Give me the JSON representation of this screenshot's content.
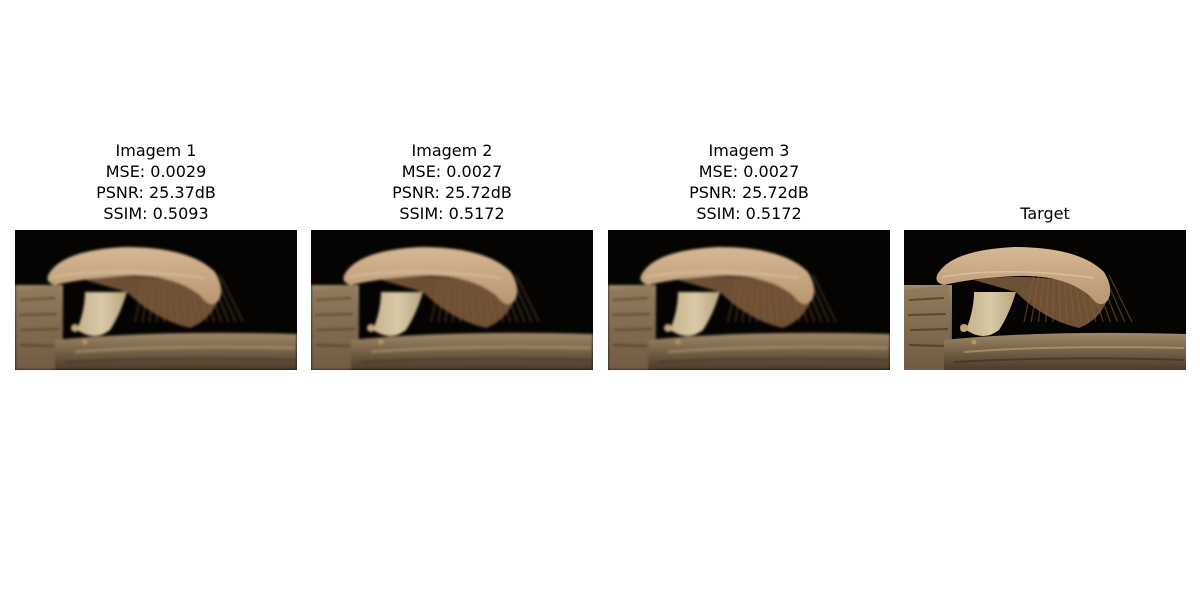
{
  "panels": [
    {
      "name": "Imagem 1",
      "metrics": [
        "MSE: 0.0029",
        "PSNR: 25.37dB",
        "SSIM: 0.5093"
      ],
      "image": "mushroom-photo"
    },
    {
      "name": "Imagem 2",
      "metrics": [
        "MSE: 0.0027",
        "PSNR: 25.72dB",
        "SSIM: 0.5172"
      ],
      "image": "mushroom-photo"
    },
    {
      "name": "Imagem 3",
      "metrics": [
        "MSE: 0.0027",
        "PSNR: 25.72dB",
        "SSIM: 0.5172"
      ],
      "image": "mushroom-photo"
    },
    {
      "name": "Target",
      "metrics": [],
      "image": "mushroom-photo"
    }
  ],
  "colors": {
    "background": "#ffffff",
    "photo_background": "#050403",
    "cap": "#b89670",
    "cap_highlight": "#d6b894",
    "gills": "#8a6440",
    "stem": "#d9c9a8",
    "log": "#8b7355",
    "log_dark": "#4a3a28"
  }
}
